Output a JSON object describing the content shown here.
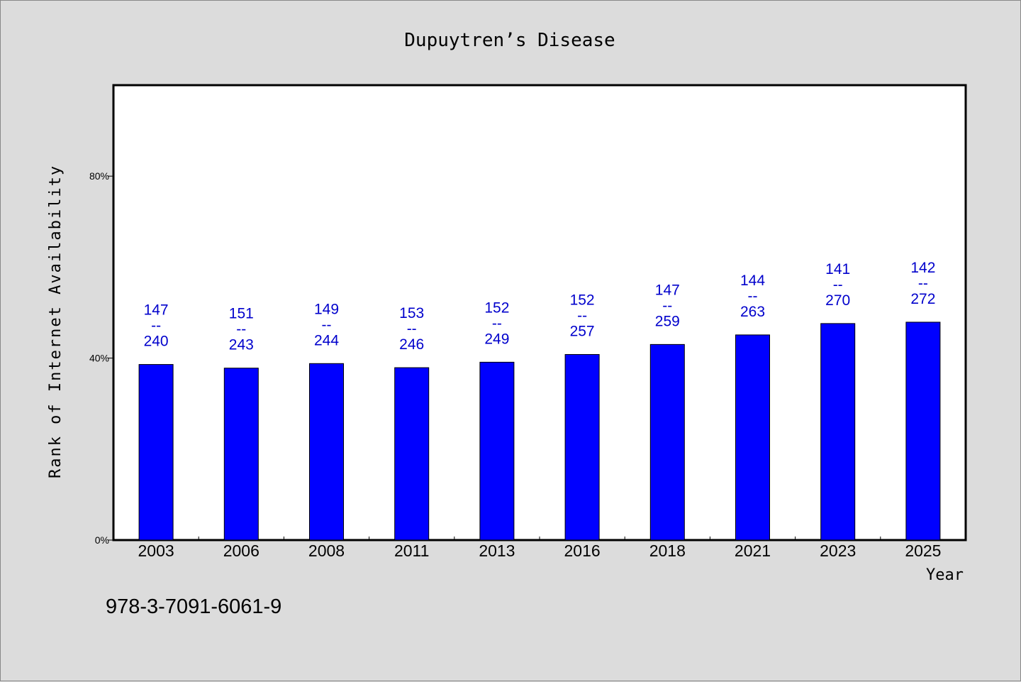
{
  "chart_data": {
    "type": "bar",
    "title": "Dupuytren’s Disease",
    "xlabel": "Year",
    "ylabel": "Rank of Internet Availability",
    "categories": [
      "2003",
      "2006",
      "2008",
      "2011",
      "2013",
      "2016",
      "2018",
      "2021",
      "2023",
      "2025"
    ],
    "values": [
      38.6,
      37.8,
      38.8,
      37.9,
      39.1,
      40.8,
      43.0,
      45.1,
      47.6,
      47.9
    ],
    "ylim": [
      0,
      100
    ],
    "yticks": [
      0,
      40,
      80
    ],
    "ytick_labels": [
      "0%",
      "40%",
      "80%"
    ],
    "bar_labels": [
      {
        "top": "147",
        "sep": "--",
        "bottom": "240"
      },
      {
        "top": "151",
        "sep": "--",
        "bottom": "243"
      },
      {
        "top": "149",
        "sep": "--",
        "bottom": "244"
      },
      {
        "top": "153",
        "sep": "--",
        "bottom": "246"
      },
      {
        "top": "152",
        "sep": "--",
        "bottom": "249"
      },
      {
        "top": "152",
        "sep": "--",
        "bottom": "257"
      },
      {
        "top": "147",
        "sep": "--",
        "bottom": "259"
      },
      {
        "top": "144",
        "sep": "--",
        "bottom": "263"
      },
      {
        "top": "141",
        "sep": "--",
        "bottom": "270"
      },
      {
        "top": "142",
        "sep": "--",
        "bottom": "272"
      }
    ],
    "grid": false,
    "legend": "none"
  },
  "footer": {
    "isbn": "978-3-7091-6061-9"
  },
  "colors": {
    "bar": "#0000ff",
    "label": "#0000cc",
    "plot_bg": "#ffffff",
    "page_bg": "#dcdcdc"
  }
}
